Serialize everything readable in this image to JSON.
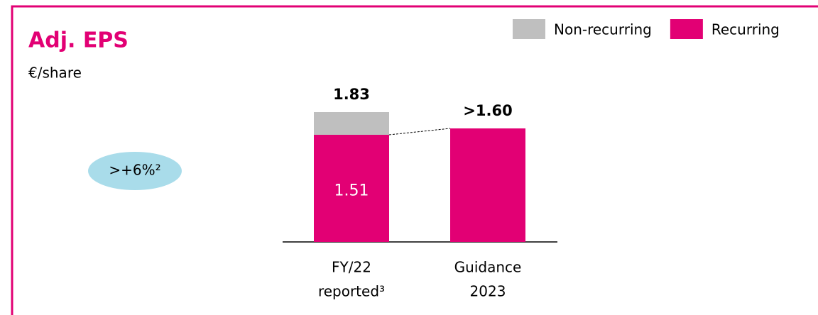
{
  "chart_data": {
    "type": "stacked-bar",
    "title": "Adj. EPS",
    "subtitle": "€/share",
    "categories": [
      [
        "FY/22",
        "reported³"
      ],
      [
        "Guidance",
        "2023"
      ]
    ],
    "series": [
      {
        "name": "Non-recurring",
        "color": "#bfbfbf",
        "values": [
          0.32,
          null
        ]
      },
      {
        "name": "Recurring",
        "color": "#e20074",
        "values": [
          1.51,
          1.6
        ],
        "value_labels": [
          "1.51",
          null
        ]
      }
    ],
    "total_labels": [
      "1.83",
      ">1.60"
    ],
    "growth_annotation": ">+6%²",
    "ylim": [
      0,
      2
    ]
  }
}
